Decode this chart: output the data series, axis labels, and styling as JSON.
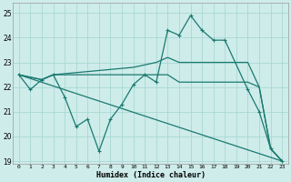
{
  "background_color": "#ceecea",
  "grid_color": "#a8d8d4",
  "line_color": "#1a7a70",
  "xlabel": "Humidex (Indice chaleur)",
  "ylim": [
    18.9,
    25.4
  ],
  "xlim": [
    -0.5,
    23.5
  ],
  "yticks": [
    19,
    20,
    21,
    22,
    23,
    24,
    25
  ],
  "xticks": [
    0,
    1,
    2,
    3,
    4,
    5,
    6,
    7,
    8,
    9,
    10,
    11,
    12,
    13,
    14,
    15,
    16,
    17,
    18,
    19,
    20,
    21,
    22,
    23
  ],
  "series": [
    {
      "x": [
        0,
        1,
        2,
        3,
        4,
        5,
        6,
        7,
        8,
        9,
        10,
        11,
        12,
        13,
        14,
        15,
        16,
        17,
        18,
        20,
        21,
        22,
        23
      ],
      "y": [
        22.5,
        21.9,
        22.3,
        22.5,
        21.6,
        20.4,
        20.7,
        19.4,
        20.7,
        21.3,
        22.1,
        22.5,
        22.2,
        24.3,
        24.1,
        24.9,
        24.3,
        23.9,
        23.9,
        21.9,
        21.0,
        19.5,
        19.0
      ],
      "markers": true
    },
    {
      "x": [
        0,
        2,
        3,
        10,
        11,
        12,
        13,
        14,
        15,
        16,
        17,
        18,
        20,
        21,
        22,
        23
      ],
      "y": [
        22.5,
        22.3,
        22.5,
        22.8,
        22.9,
        23.0,
        23.2,
        23.0,
        23.0,
        23.0,
        23.0,
        23.0,
        23.0,
        22.0,
        19.5,
        19.0
      ],
      "markers": false
    },
    {
      "x": [
        0,
        2,
        3,
        10,
        11,
        12,
        13,
        14,
        15,
        16,
        17,
        18,
        20,
        21,
        22,
        23
      ],
      "y": [
        22.5,
        22.3,
        22.5,
        22.5,
        22.5,
        22.5,
        22.5,
        22.2,
        22.2,
        22.2,
        22.2,
        22.2,
        22.2,
        22.0,
        19.5,
        19.0
      ],
      "markers": false
    },
    {
      "x": [
        0,
        23
      ],
      "y": [
        22.5,
        19.0
      ],
      "markers": false
    }
  ]
}
